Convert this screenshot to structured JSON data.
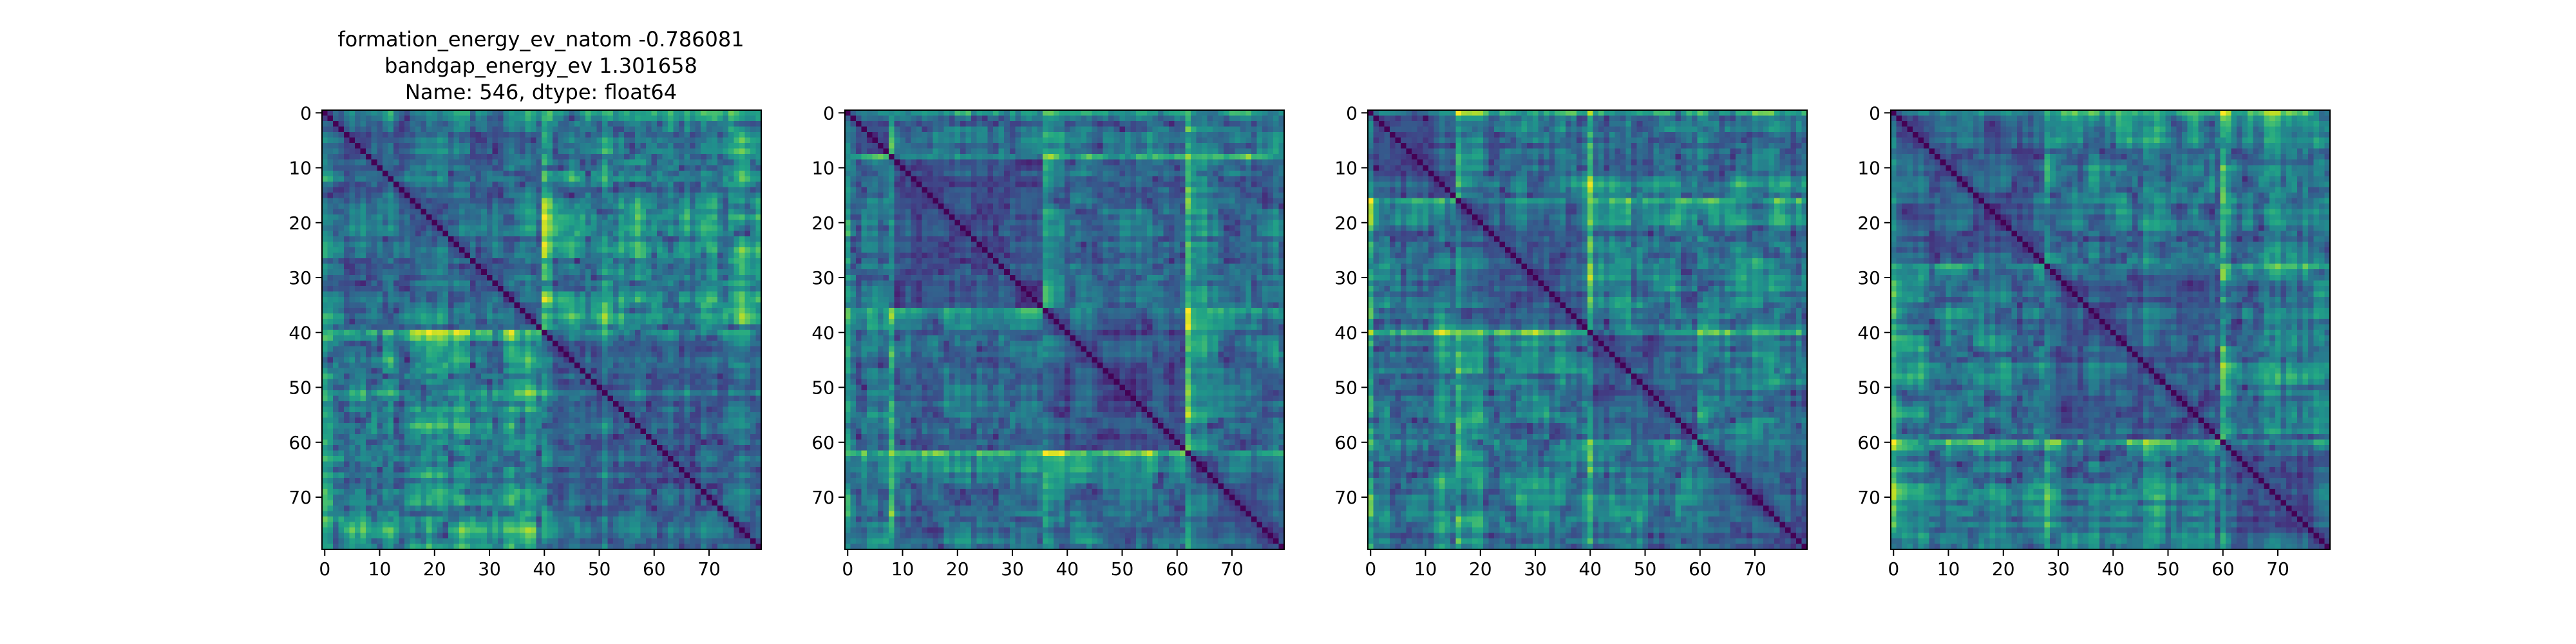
{
  "figure": {
    "title_lines": [
      "formation_energy_ev_natom   -0.786081",
      "bandgap_energy_ev            1.301658",
      "Name: 546, dtype: float64"
    ]
  },
  "chart_data": [
    {
      "type": "heatmap",
      "colormap": "viridis",
      "matrix_size": 80,
      "diagonal": "min (dark purple)",
      "xticks": [
        0,
        10,
        20,
        30,
        40,
        50,
        60,
        70
      ],
      "yticks": [
        0,
        10,
        20,
        30,
        40,
        50,
        60,
        70
      ],
      "xlim": [
        0,
        79
      ],
      "ylim": [
        79,
        0
      ],
      "block_boundaries": [
        40
      ],
      "seed": 546
    },
    {
      "type": "heatmap",
      "colormap": "viridis",
      "matrix_size": 80,
      "diagonal": "min (dark purple)",
      "xticks": [
        0,
        10,
        20,
        30,
        40,
        50,
        60,
        70
      ],
      "yticks": [
        0,
        10,
        20,
        30,
        40,
        50,
        60,
        70
      ],
      "xlim": [
        0,
        79
      ],
      "ylim": [
        79,
        0
      ],
      "block_boundaries": [
        8,
        36,
        62
      ],
      "seed": 8117
    },
    {
      "type": "heatmap",
      "colormap": "viridis",
      "matrix_size": 80,
      "diagonal": "min (dark purple)",
      "xticks": [
        0,
        10,
        20,
        30,
        40,
        50,
        60,
        70
      ],
      "yticks": [
        0,
        10,
        20,
        30,
        40,
        50,
        60,
        70
      ],
      "xlim": [
        0,
        79
      ],
      "ylim": [
        79,
        0
      ],
      "block_boundaries": [
        16,
        40,
        60
      ],
      "seed": 2931
    },
    {
      "type": "heatmap",
      "colormap": "viridis",
      "matrix_size": 80,
      "diagonal": "min (dark purple)",
      "xticks": [
        0,
        10,
        20,
        30,
        40,
        50,
        60,
        70
      ],
      "yticks": [
        0,
        10,
        20,
        30,
        40,
        50,
        60,
        70
      ],
      "xlim": [
        0,
        79
      ],
      "ylim": [
        79,
        0
      ],
      "block_boundaries": [
        28,
        60
      ],
      "seed": 4477
    }
  ]
}
